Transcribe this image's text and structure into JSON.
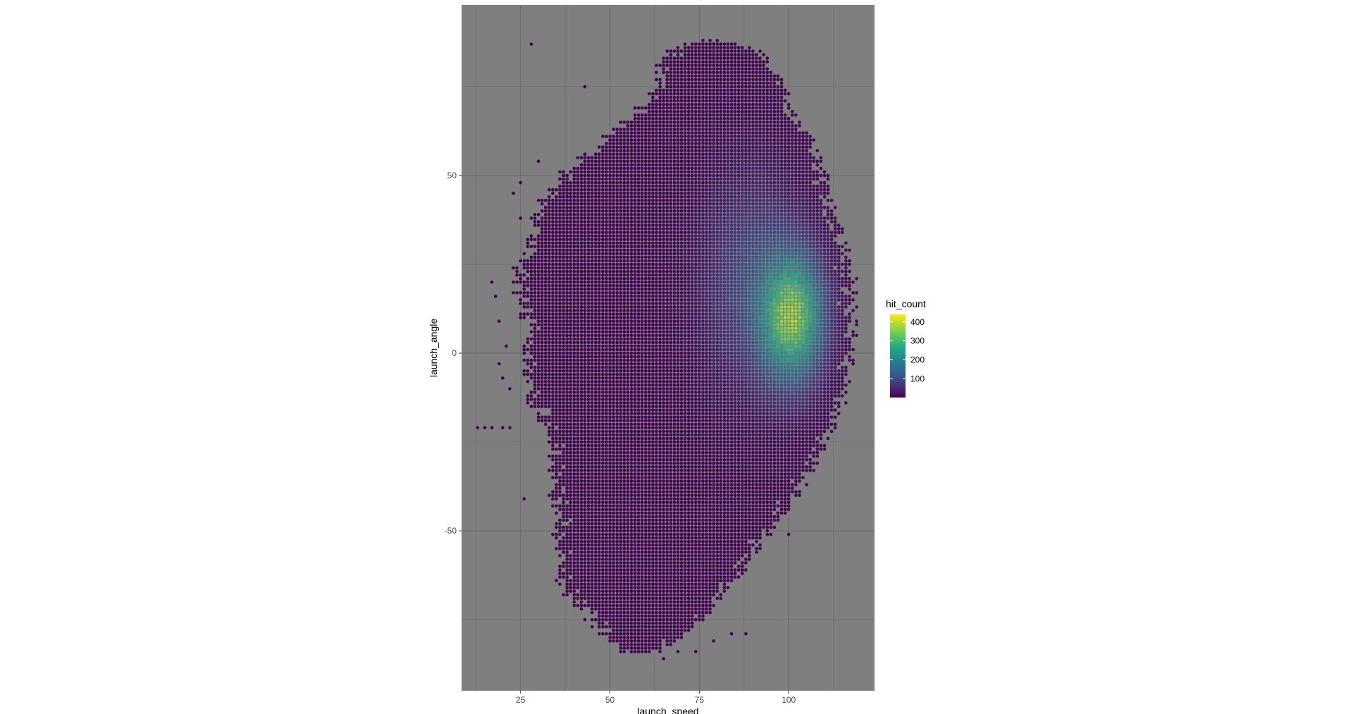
{
  "chart_data": {
    "type": "scatter",
    "title": "",
    "xlabel": "launch_speed",
    "ylabel": "launch_angle",
    "xlim": [
      8.5,
      124
    ],
    "ylim": [
      -95,
      98
    ],
    "x_ticks": [
      25,
      50,
      75,
      100
    ],
    "x_tick_labels": [
      "25",
      "50",
      "75",
      "100"
    ],
    "x_minor_ticks": [
      12.5,
      37.5,
      62.5,
      87.5,
      112.5
    ],
    "y_ticks": [
      -50,
      0,
      50
    ],
    "y_tick_labels": [
      "-50",
      "0",
      "50"
    ],
    "y_minor_ticks": [
      -75,
      -25,
      25,
      75
    ],
    "grid": true,
    "panel_background": "#7f7f7f",
    "grid_color": "#6a6a6a",
    "bin_size": 1,
    "color_scale": {
      "name": "hit_count",
      "palette": "viridis",
      "colors": [
        "#440154",
        "#482878",
        "#3e4a89",
        "#31688e",
        "#26828e",
        "#1f9e89",
        "#35b779",
        "#6ece58",
        "#b5de2b",
        "#fde725"
      ],
      "min": 1,
      "max": 440,
      "breaks": [
        100,
        200,
        300,
        400
      ],
      "break_labels": [
        "100",
        "200",
        "300",
        "400"
      ]
    },
    "legend_position": "right",
    "density_peak": {
      "launch_speed": 101,
      "launch_angle": 10,
      "hit_count": 440
    },
    "boundary_rows": [
      {
        "launch_angle": 88,
        "launch_speed_min": 73,
        "launch_speed_max": 80
      },
      {
        "launch_angle": 86,
        "launch_speed_min": 68,
        "launch_speed_max": 90
      },
      {
        "launch_angle": 84,
        "launch_speed_min": 66,
        "launch_speed_max": 93
      },
      {
        "launch_angle": 80,
        "launch_speed_min": 64,
        "launch_speed_max": 95
      },
      {
        "launch_angle": 75,
        "launch_speed_min": 64,
        "launch_speed_max": 99
      },
      {
        "launch_angle": 70,
        "launch_speed_min": 60,
        "launch_speed_max": 101
      },
      {
        "launch_angle": 65,
        "launch_speed_min": 53,
        "launch_speed_max": 103
      },
      {
        "launch_angle": 60,
        "launch_speed_min": 48,
        "launch_speed_max": 106
      },
      {
        "launch_angle": 55,
        "launch_speed_min": 42,
        "launch_speed_max": 108
      },
      {
        "launch_angle": 50,
        "launch_speed_min": 36,
        "launch_speed_max": 110
      },
      {
        "launch_angle": 45,
        "launch_speed_min": 32,
        "launch_speed_max": 112
      },
      {
        "launch_angle": 40,
        "launch_speed_min": 30,
        "launch_speed_max": 113
      },
      {
        "launch_angle": 35,
        "launch_speed_min": 28,
        "launch_speed_max": 114
      },
      {
        "launch_angle": 30,
        "launch_speed_min": 27,
        "launch_speed_max": 116
      },
      {
        "launch_angle": 25,
        "launch_speed_min": 25,
        "launch_speed_max": 117
      },
      {
        "launch_angle": 20,
        "launch_speed_min": 24,
        "launch_speed_max": 118
      },
      {
        "launch_angle": 15,
        "launch_speed_min": 25,
        "launch_speed_max": 118
      },
      {
        "launch_angle": 10,
        "launch_speed_min": 26,
        "launch_speed_max": 118
      },
      {
        "launch_angle": 5,
        "launch_speed_min": 27,
        "launch_speed_max": 119
      },
      {
        "launch_angle": 0,
        "launch_speed_min": 26,
        "launch_speed_max": 118
      },
      {
        "launch_angle": -5,
        "launch_speed_min": 27,
        "launch_speed_max": 117
      },
      {
        "launch_angle": -10,
        "launch_speed_min": 28,
        "launch_speed_max": 116
      },
      {
        "launch_angle": -15,
        "launch_speed_min": 29,
        "launch_speed_max": 115
      },
      {
        "launch_angle": -20,
        "launch_speed_min": 31,
        "launch_speed_max": 113
      },
      {
        "launch_angle": -25,
        "launch_speed_min": 33,
        "launch_speed_max": 111
      },
      {
        "launch_angle": -30,
        "launch_speed_min": 33,
        "launch_speed_max": 108
      },
      {
        "launch_angle": -35,
        "launch_speed_min": 34,
        "launch_speed_max": 105
      },
      {
        "launch_angle": -40,
        "launch_speed_min": 34,
        "launch_speed_max": 102
      },
      {
        "launch_angle": -45,
        "launch_speed_min": 35,
        "launch_speed_max": 99
      },
      {
        "launch_angle": -50,
        "launch_speed_min": 35,
        "launch_speed_max": 95
      },
      {
        "launch_angle": -55,
        "launch_speed_min": 35,
        "launch_speed_max": 91
      },
      {
        "launch_angle": -60,
        "launch_speed_min": 35,
        "launch_speed_max": 88
      },
      {
        "launch_angle": -65,
        "launch_speed_min": 37,
        "launch_speed_max": 84
      },
      {
        "launch_angle": -70,
        "launch_speed_min": 40,
        "launch_speed_max": 80
      },
      {
        "launch_angle": -75,
        "launch_speed_min": 44,
        "launch_speed_max": 76
      },
      {
        "launch_angle": -80,
        "launch_speed_min": 49,
        "launch_speed_max": 70
      },
      {
        "launch_angle": -84,
        "launch_speed_min": 53,
        "launch_speed_max": 64
      }
    ],
    "outlier_points": [
      {
        "launch_speed": 28,
        "launch_angle": 87
      },
      {
        "launch_speed": 43,
        "launch_angle": 75
      },
      {
        "launch_speed": 30,
        "launch_angle": 54
      },
      {
        "launch_speed": 25,
        "launch_angle": 48
      },
      {
        "launch_speed": 23,
        "launch_angle": 45
      },
      {
        "launch_speed": 25,
        "launch_angle": 38
      },
      {
        "launch_speed": 17,
        "launch_angle": 20
      },
      {
        "launch_speed": 18,
        "launch_angle": 16
      },
      {
        "launch_speed": 19,
        "launch_angle": 9
      },
      {
        "launch_speed": 21,
        "launch_angle": 2
      },
      {
        "launch_speed": 19,
        "launch_angle": -3
      },
      {
        "launch_speed": 20,
        "launch_angle": -7
      },
      {
        "launch_speed": 22,
        "launch_angle": -10
      },
      {
        "launch_speed": 13,
        "launch_angle": -21
      },
      {
        "launch_speed": 15,
        "launch_angle": -21
      },
      {
        "launch_speed": 17,
        "launch_angle": -21
      },
      {
        "launch_speed": 20,
        "launch_angle": -21
      },
      {
        "launch_speed": 22,
        "launch_angle": -21
      },
      {
        "launch_speed": 26,
        "launch_angle": -41
      },
      {
        "launch_speed": 100,
        "launch_angle": -51
      },
      {
        "launch_speed": 87,
        "launch_angle": -56
      },
      {
        "launch_speed": 88,
        "launch_angle": -79
      },
      {
        "launch_speed": 84,
        "launch_angle": -79
      },
      {
        "launch_speed": 79,
        "launch_angle": -81
      },
      {
        "launch_speed": 74,
        "launch_angle": -84
      },
      {
        "launch_speed": 65,
        "launch_angle": -86
      },
      {
        "launch_speed": 69,
        "launch_angle": -84
      }
    ]
  }
}
